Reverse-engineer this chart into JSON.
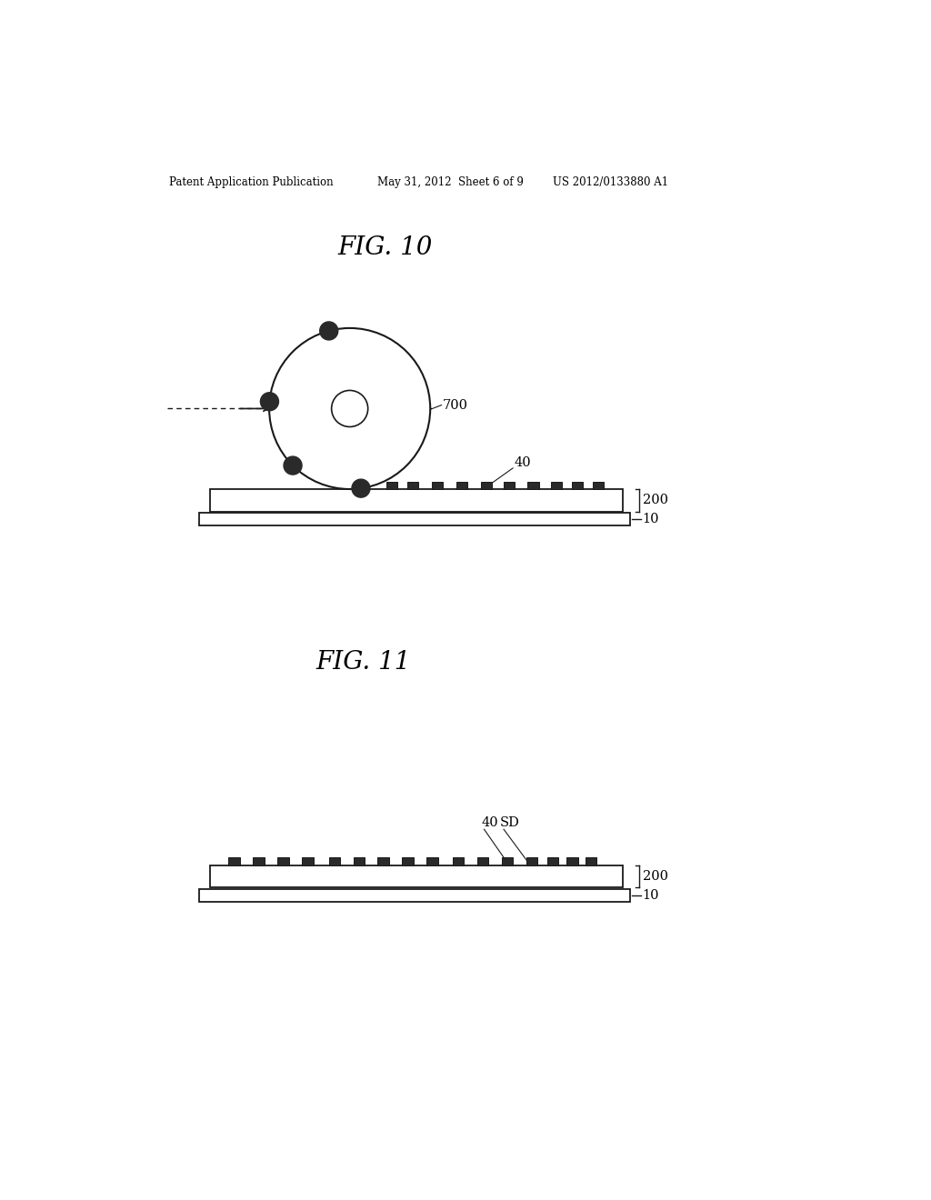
{
  "bg_color": "#ffffff",
  "header_left": "Patent Application Publication",
  "header_center": "May 31, 2012  Sheet 6 of 9",
  "header_right": "US 2012/0133880 A1",
  "fig10_title": "FIG. 10",
  "fig11_title": "FIG. 11",
  "label_700": "700",
  "label_40_fig10": "40",
  "label_200_fig10": "200",
  "label_10_fig10": "10",
  "label_40_fig11": "40",
  "label_SD": "SD",
  "label_200_fig11": "200",
  "label_10_fig11": "10",
  "bump_color": "#2a2a2a",
  "line_color": "#1a1a1a"
}
